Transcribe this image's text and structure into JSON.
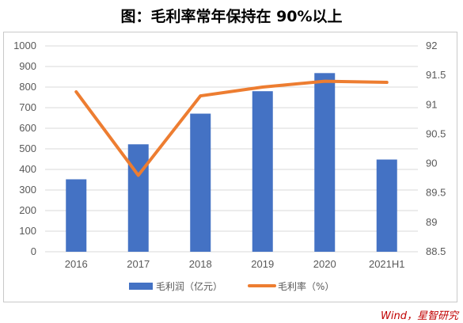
{
  "title": "图：毛利率常年保持在 90%以上",
  "source": "Wind，星智研究",
  "colors": {
    "bar": "#4472c4",
    "line": "#ed7d31",
    "grid": "#d9d9d9",
    "axis_text": "#595959"
  },
  "chart_data": {
    "type": "bar",
    "categories": [
      "2016",
      "2017",
      "2018",
      "2019",
      "2020",
      "2021H1"
    ],
    "series": [
      {
        "name": "毛利润（亿元）",
        "type": "bar",
        "axis": "left",
        "values": [
          352,
          522,
          671,
          780,
          868,
          448
        ]
      },
      {
        "name": "毛利率（%）",
        "type": "line",
        "axis": "right",
        "values": [
          91.22,
          89.8,
          91.15,
          91.3,
          91.4,
          91.38
        ]
      }
    ],
    "ylim": [
      0,
      1000
    ],
    "yticks": [
      0,
      100,
      200,
      300,
      400,
      500,
      600,
      700,
      800,
      900,
      1000
    ],
    "y2lim": [
      88.5,
      92
    ],
    "y2ticks": [
      "88.5",
      "89",
      "89.5",
      "90",
      "90.5",
      "91",
      "91.5",
      "92"
    ],
    "grid": true,
    "legend": "bottom"
  }
}
